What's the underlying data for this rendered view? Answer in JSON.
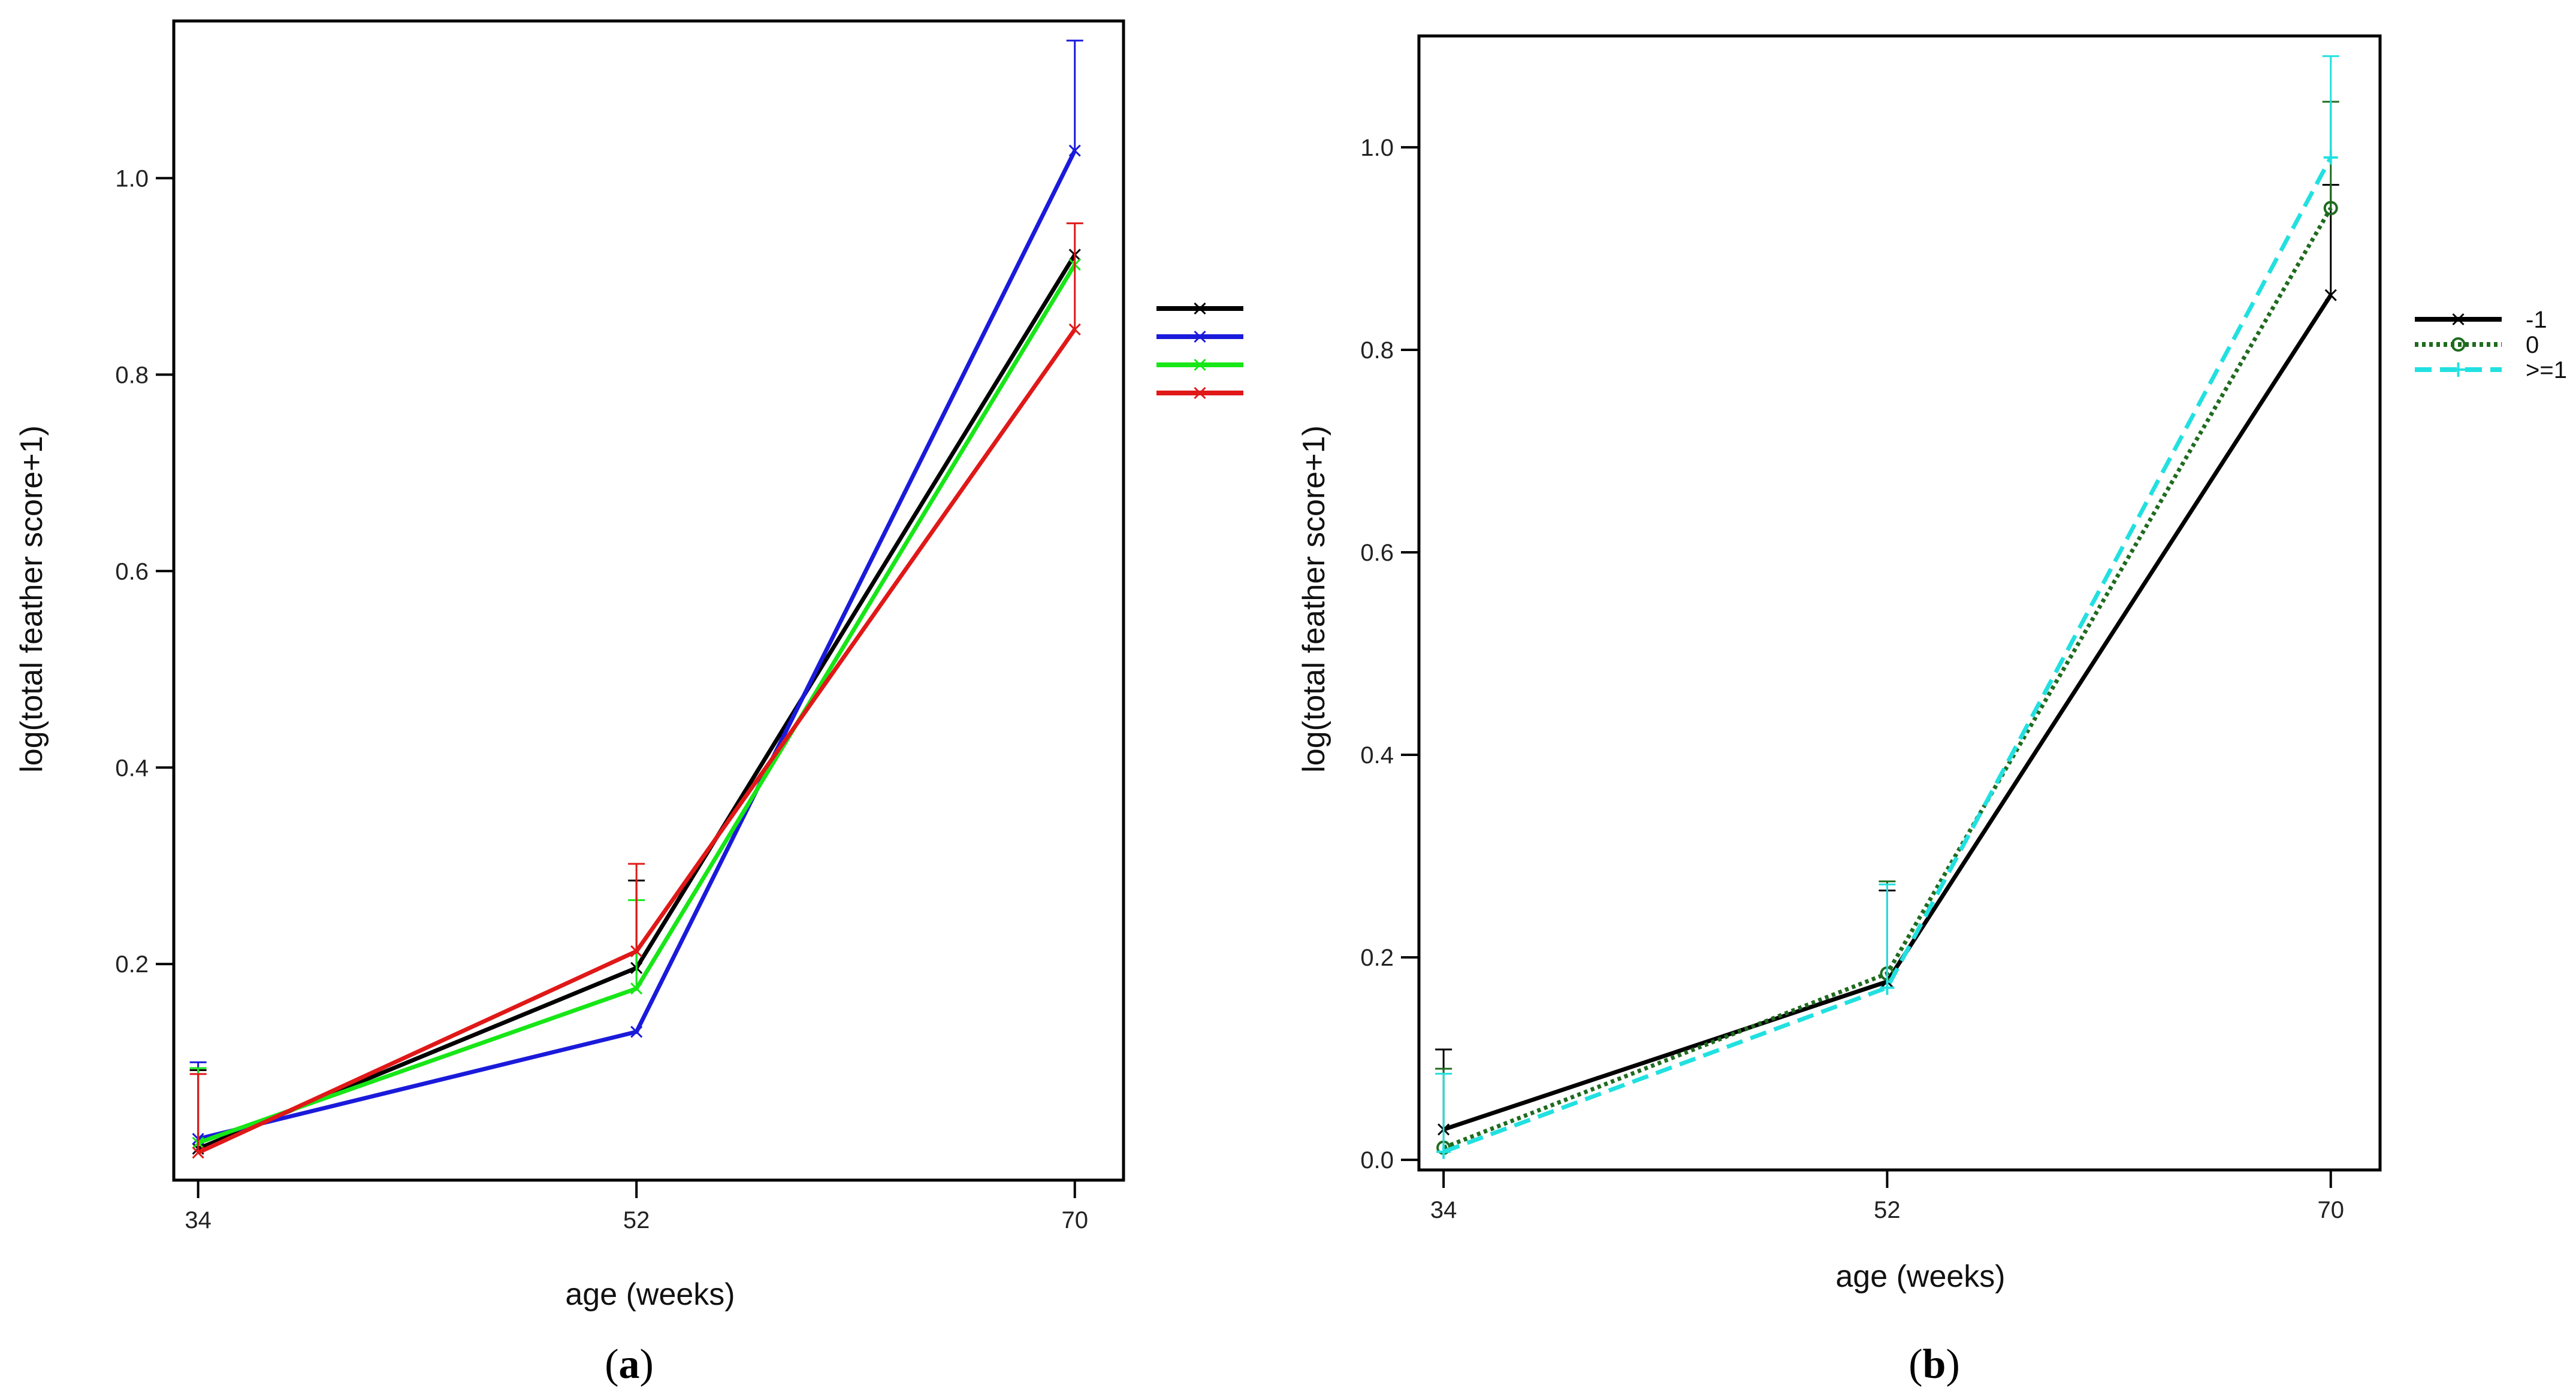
{
  "chart_data": [
    {
      "type": "line",
      "panel_label": "(a)",
      "panel_letter": "a",
      "panel_open": "(",
      "panel_close": ")",
      "title": "",
      "xlabel": "age (weeks)",
      "ylabel": "log(total feather score+1)",
      "x": [
        34,
        52,
        70
      ],
      "xlim": [
        33,
        72
      ],
      "ylim": [
        -0.02,
        1.16
      ],
      "xticks": [
        34,
        52,
        70
      ],
      "yticks": [
        0.2,
        0.4,
        0.6,
        0.8,
        1.0
      ],
      "ytick_labels": [
        "0.2",
        "0.4",
        "0.6",
        "0.8",
        "1.0"
      ],
      "grid": false,
      "legend": "right",
      "series": [
        {
          "name": "",
          "color": "#000000",
          "values": [
            0.012,
            0.196,
            0.922
          ],
          "err_upper": [
            0.092,
            0.285,
            null
          ]
        },
        {
          "name": "",
          "color": "#1a1adb",
          "values": [
            0.022,
            0.131,
            1.028
          ],
          "err_upper": [
            0.1,
            null,
            1.14
          ]
        },
        {
          "name": "",
          "color": "#17e617",
          "values": [
            0.018,
            0.175,
            0.912
          ],
          "err_upper": [
            0.094,
            0.265,
            null
          ]
        },
        {
          "name": "",
          "color": "#e01818",
          "values": [
            0.008,
            0.213,
            0.846
          ],
          "err_upper": [
            0.088,
            0.302,
            0.954
          ]
        }
      ]
    },
    {
      "type": "line",
      "panel_label": "(b)",
      "panel_letter": "b",
      "panel_open": "(",
      "panel_close": ")",
      "title": "",
      "xlabel": "age (weeks)",
      "ylabel": "log(total feather score+1)",
      "x": [
        34,
        52,
        70
      ],
      "xlim": [
        33,
        72
      ],
      "ylim": [
        -0.01,
        1.11
      ],
      "xticks": [
        34,
        52,
        70
      ],
      "yticks": [
        0.0,
        0.2,
        0.4,
        0.6,
        0.8,
        1.0
      ],
      "ytick_labels": [
        "0.0",
        "0.2",
        "0.4",
        "0.6",
        "0.8",
        "1.0"
      ],
      "grid": false,
      "legend": "right",
      "series": [
        {
          "name": "-1",
          "color": "#000000",
          "style": "solid",
          "marker": "x",
          "values": [
            0.03,
            0.176,
            0.854
          ],
          "err_upper": [
            0.109,
            0.266,
            0.963
          ]
        },
        {
          "name": "0",
          "color": "#1f6b1f",
          "style": "dotted",
          "marker": "o",
          "values": [
            0.012,
            0.184,
            0.94
          ],
          "err_upper": [
            0.09,
            0.275,
            1.045
          ]
        },
        {
          "name": ">=1",
          "color": "#22e0e0",
          "style": "dashed",
          "marker": "+",
          "values": [
            0.008,
            0.17,
            0.99
          ],
          "err_upper": [
            0.085,
            0.272,
            1.09
          ]
        }
      ]
    }
  ]
}
